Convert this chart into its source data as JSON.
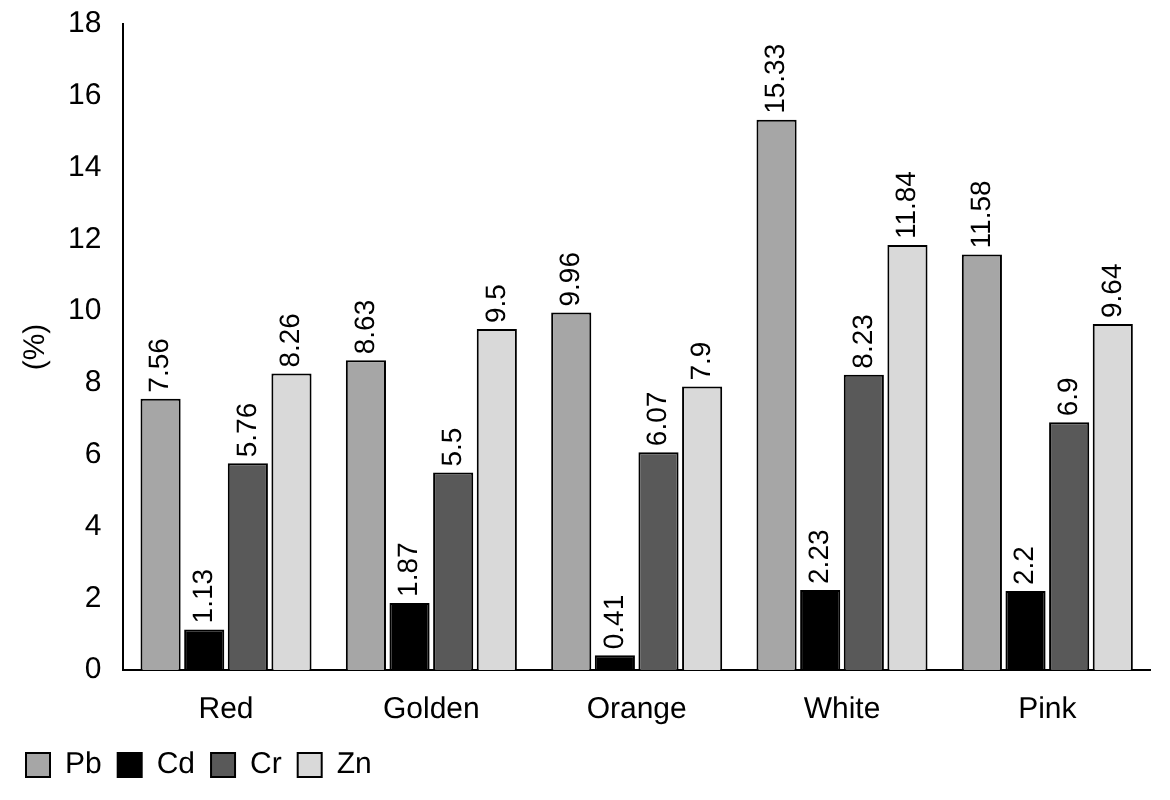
{
  "chart_data": {
    "type": "bar",
    "ylabel": "(%)",
    "categories": [
      "Red",
      "Golden",
      "Orange",
      "White",
      "Pink"
    ],
    "series": [
      {
        "name": "Pb",
        "color": "#a6a6a6",
        "values": [
          7.56,
          8.63,
          9.96,
          15.33,
          11.58
        ]
      },
      {
        "name": "Cd",
        "color": "#000000",
        "values": [
          1.13,
          1.87,
          0.41,
          2.23,
          2.2
        ]
      },
      {
        "name": "Cr",
        "color": "#595959",
        "values": [
          5.76,
          5.5,
          6.07,
          8.23,
          6.9
        ]
      },
      {
        "name": "Zn",
        "color": "#d9d9d9",
        "values": [
          8.26,
          9.5,
          7.9,
          11.84,
          9.64
        ]
      }
    ],
    "ylim": [
      0,
      18
    ],
    "yticks": [
      0,
      2,
      4,
      6,
      8,
      10,
      12,
      14,
      16,
      18
    ],
    "grid": false,
    "legend": "bottom left",
    "data_labels": true
  }
}
